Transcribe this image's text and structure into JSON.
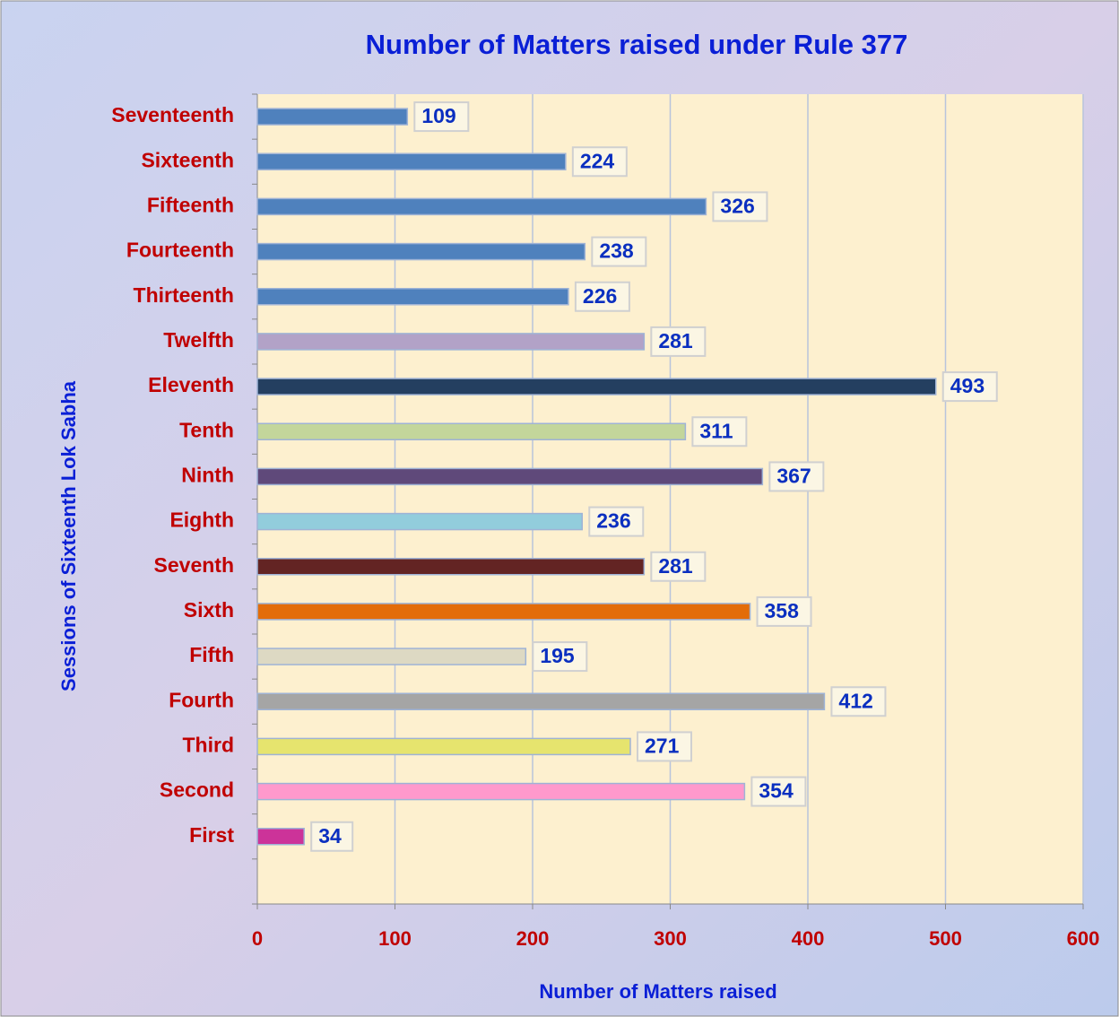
{
  "chart_data": {
    "type": "bar",
    "orientation": "horizontal",
    "title": "Number of Matters raised under Rule 377",
    "x_label": "Number of Matters raised",
    "y_label": "Sessions of Sixteenth Lok Sabha",
    "categories": [
      null,
      "First",
      "Second",
      "Third",
      "Fourth",
      "Fifth",
      "Sixth",
      "Seventh",
      "Eighth",
      "Ninth",
      "Tenth",
      "Eleventh",
      "Twelfth",
      "Thirteenth",
      "Fourteenth",
      "Fifteenth",
      "Sixteenth",
      "Seventeenth"
    ],
    "values": [
      null,
      34,
      354,
      271,
      412,
      195,
      358,
      281,
      236,
      367,
      311,
      493,
      281,
      226,
      238,
      326,
      224,
      109
    ],
    "colors": [
      "#4f81bd",
      "#cc3399",
      "#ff99cc",
      "#e6e46e",
      "#a5a5a5",
      "#ddd9c3",
      "#e36c09",
      "#632423",
      "#92cddc",
      "#5f497a",
      "#c3d69b",
      "#243f60",
      "#b2a2c7",
      "#4f81bd",
      "#4f81bd",
      "#4f81bd",
      "#4f81bd",
      "#4f81bd"
    ],
    "xlim": [
      0,
      600
    ],
    "xticks": [
      0,
      100,
      200,
      300,
      400,
      500,
      600
    ],
    "grid": true
  }
}
